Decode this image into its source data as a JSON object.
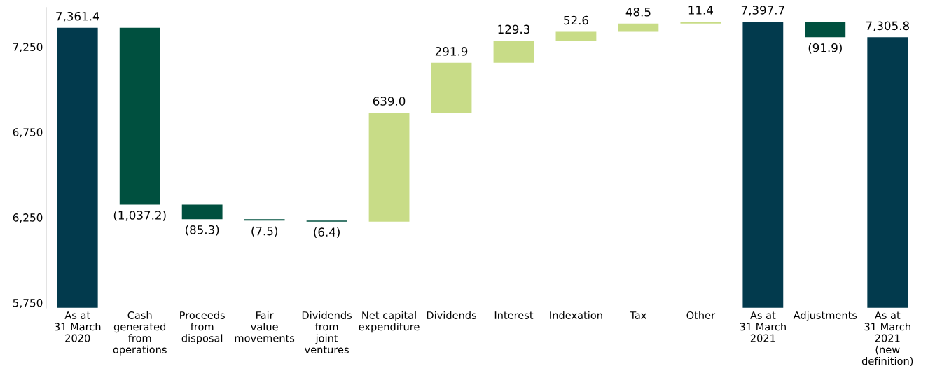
{
  "chart_data": {
    "type": "bar",
    "categories": [
      "As at\n31 March\n2020",
      "Cash\ngenerated\nfrom\noperations",
      "Proceeds\nfrom\ndisposal",
      "Fair\nvalue\nmovements",
      "Dividends\nfrom\njoint\nventures",
      "Net capital\nexpenditure",
      "Dividends",
      "Interest",
      "Indexation",
      "Tax",
      "Other",
      "As at\n31 March\n2021",
      "Adjustments",
      "As at\n31 March\n2021\n(new\ndefinition)"
    ],
    "values": [
      7361.4,
      -1037.2,
      -85.3,
      -7.5,
      -6.4,
      639.0,
      291.9,
      129.3,
      52.6,
      48.5,
      11.4,
      7397.7,
      -91.9,
      7305.8
    ],
    "base": [
      null,
      7361.4,
      6324.2,
      6238.9,
      6231.4,
      6225.0,
      6864.0,
      7155.9,
      7285.2,
      7337.8,
      7386.3,
      null,
      7397.7,
      null
    ],
    "colors": [
      "#023a4d",
      "#00503f",
      "#00503f",
      "#00503f",
      "#00503f",
      "#c8dc87",
      "#c8dc87",
      "#c8dc87",
      "#c8dc87",
      "#c8dc87",
      "#c8dc87",
      "#023a4d",
      "#00503f",
      "#023a4d"
    ],
    "value_labels": [
      "7,361.4",
      "(1,037.2)",
      "(85.3)",
      "(7.5)",
      "(6.4)",
      "639.0",
      "291.9",
      "129.3",
      "52.6",
      "48.5",
      "11.4",
      "7,397.7",
      "(91.9)",
      "7,305.8"
    ],
    "ylim": [
      5720,
      7480
    ],
    "yticks": [
      {
        "value": 5750,
        "label": "5,750"
      },
      {
        "value": 6250,
        "label": "6,250"
      },
      {
        "value": 6750,
        "label": "6,750"
      },
      {
        "value": 7250,
        "label": "7,250"
      }
    ],
    "grid": false,
    "legend": false
  }
}
